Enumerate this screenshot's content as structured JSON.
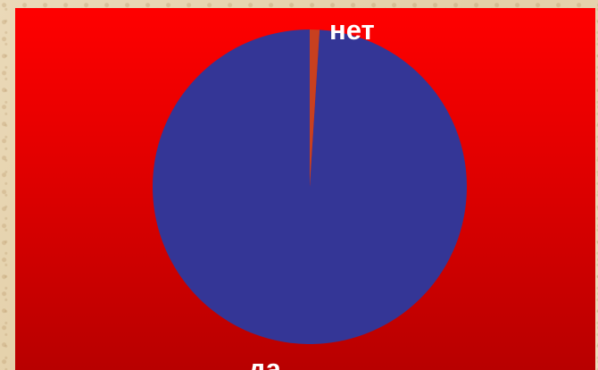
{
  "chart_data": {
    "type": "pie",
    "categories": [
      "да",
      "нет"
    ],
    "values": [
      99,
      1
    ],
    "colors": [
      "#343696",
      "#c8401f"
    ],
    "labels": [
      "да",
      "нет"
    ],
    "background_gradient": [
      "#ff0000",
      "#b80000"
    ],
    "legend": "none"
  }
}
